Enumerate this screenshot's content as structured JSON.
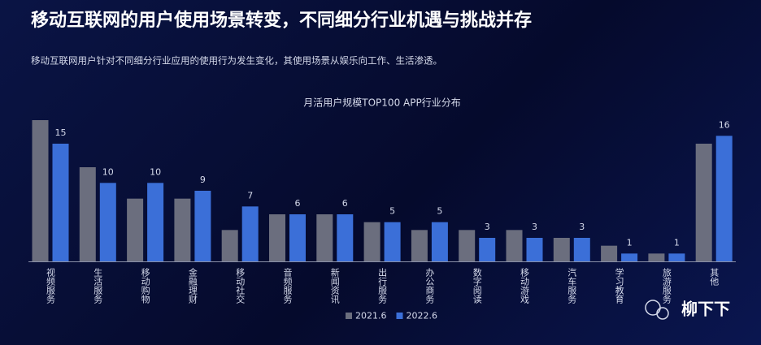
{
  "title": "移动互联网的用户使用场景转变，不同细分行业机遇与挑战并存",
  "subtitle": "移动互联网用户针对不同细分行业应用的使用行为发生变化，其使用场景从娱乐向工作、生活渗透。",
  "watermark": "柳下下",
  "chart_data": {
    "type": "bar",
    "title": "月活用户规模TOP100 APP行业分布",
    "categories": [
      "视频服务",
      "生活服务",
      "移动购物",
      "金融理财",
      "移动社交",
      "音频服务",
      "新闻资讯",
      "出行服务",
      "办公商务",
      "数字阅读",
      "移动游戏",
      "汽车服务",
      "学习教育",
      "旅游服务",
      "其他"
    ],
    "series": [
      {
        "name": "2021.6",
        "color": "#6b6e7e",
        "values": [
          18,
          12,
          8,
          8,
          4,
          6,
          6,
          5,
          4,
          4,
          4,
          3,
          2,
          1,
          15
        ]
      },
      {
        "name": "2022.6",
        "color": "#3b6fd8",
        "values": [
          15,
          10,
          10,
          9,
          7,
          6,
          6,
          5,
          5,
          3,
          3,
          3,
          1,
          1,
          16
        ],
        "data_labels": true
      }
    ],
    "legend": "bottom"
  }
}
